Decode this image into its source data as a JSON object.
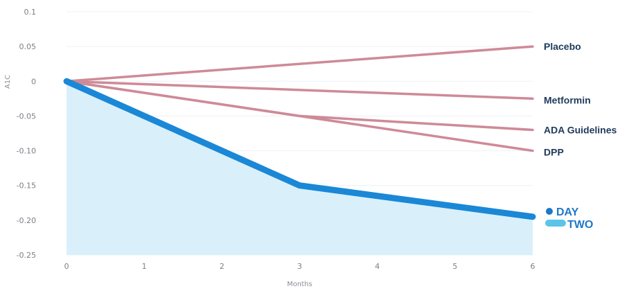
{
  "chart_data": {
    "type": "line",
    "xlabel": "Months",
    "ylabel": "A1C",
    "xlim": [
      0,
      6
    ],
    "ylim": [
      -0.25,
      0.1
    ],
    "x_ticks": [
      "0",
      "1",
      "2",
      "3",
      "4",
      "5",
      "6"
    ],
    "y_ticks": [
      "0.1",
      "0.05",
      "0",
      "-0.05",
      "-0.10",
      "-0.15",
      "-0.20",
      "-0.25"
    ],
    "grid": true,
    "series": [
      {
        "name": "Placebo",
        "x": [
          0,
          6
        ],
        "y": [
          0,
          0.05
        ],
        "color": "#cf8a97"
      },
      {
        "name": "Metformin",
        "x": [
          0,
          6
        ],
        "y": [
          0,
          -0.025
        ],
        "color": "#cf8a97"
      },
      {
        "name": "ADA Guidelines",
        "x": [
          0,
          3,
          6
        ],
        "y": [
          0,
          -0.05,
          -0.07
        ],
        "color": "#cf8a97"
      },
      {
        "name": "DPP",
        "x": [
          0,
          6
        ],
        "y": [
          0,
          -0.1
        ],
        "color": "#cf8a97"
      },
      {
        "name": "DAY TWO",
        "x": [
          0,
          3,
          6
        ],
        "y": [
          0,
          -0.15,
          -0.195
        ],
        "color": "#1a88d6",
        "fill": "#d9f0fa",
        "highlight": true
      }
    ],
    "legend": {
      "logo_top": "DAY",
      "logo_bottom": "TWO"
    }
  },
  "colors": {
    "accent": "#1a88d6",
    "comparison": "#cf8a97",
    "area": "#d9f0fa",
    "label": "#1f3a5c",
    "grid": "#eef0f3"
  }
}
